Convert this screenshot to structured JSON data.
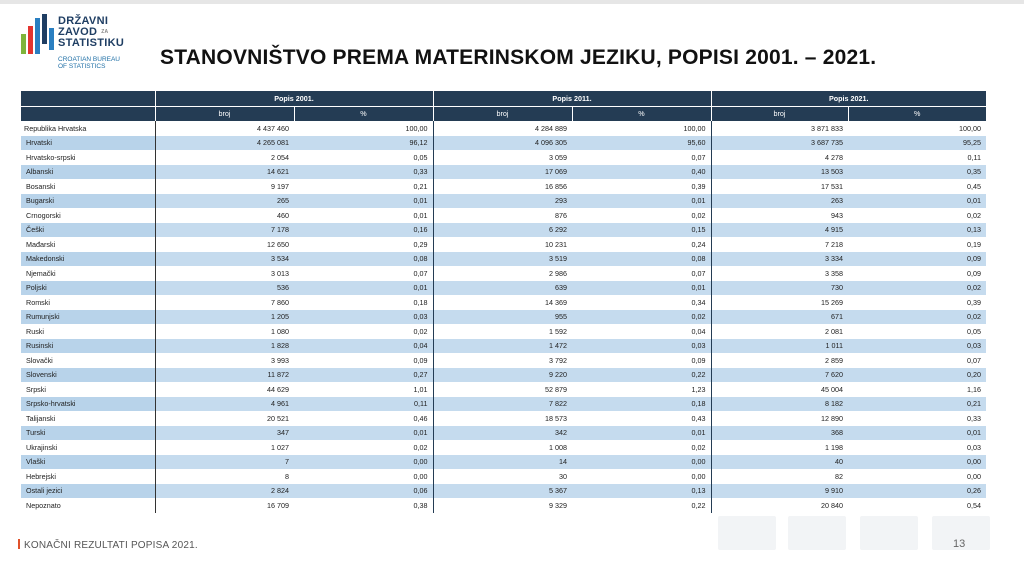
{
  "logo": {
    "line1": "DRŽAVNI",
    "line2": "ZAVOD",
    "line2_note": "ZA",
    "line3": "STATISTIKU",
    "sub1": "CROATIAN BUREAU",
    "sub2": "OF STATISTICS",
    "colors": [
      "#2a7fc1",
      "#e3342f",
      "#1f3e63",
      "#7fb43a"
    ]
  },
  "title": "STANOVNIŠTVO PREMA MATERINSKOM JEZIKU, POPISI 2001. – 2021.",
  "table": {
    "censuses": [
      "Popis 2001.",
      "Popis 2011.",
      "Popis 2021."
    ],
    "subheaders": [
      "broj",
      "%"
    ],
    "rows": [
      {
        "lang": "Republika Hrvatska",
        "v": [
          "4 437 460",
          "100,00",
          "4 284 889",
          "100,00",
          "3 871 833",
          "100,00"
        ]
      },
      {
        "lang": "Hrvatski",
        "v": [
          "4 265 081",
          "96,12",
          "4 096 305",
          "95,60",
          "3 687 735",
          "95,25"
        ]
      },
      {
        "lang": "Hrvatsko-srpski",
        "v": [
          "2 054",
          "0,05",
          "3 059",
          "0,07",
          "4 278",
          "0,11"
        ]
      },
      {
        "lang": "Albanski",
        "v": [
          "14 621",
          "0,33",
          "17 069",
          "0,40",
          "13 503",
          "0,35"
        ]
      },
      {
        "lang": "Bosanski",
        "v": [
          "9 197",
          "0,21",
          "16 856",
          "0,39",
          "17 531",
          "0,45"
        ]
      },
      {
        "lang": "Bugarski",
        "v": [
          "265",
          "0,01",
          "293",
          "0,01",
          "263",
          "0,01"
        ]
      },
      {
        "lang": "Crnogorski",
        "v": [
          "460",
          "0,01",
          "876",
          "0,02",
          "943",
          "0,02"
        ]
      },
      {
        "lang": "Češki",
        "v": [
          "7 178",
          "0,16",
          "6 292",
          "0,15",
          "4 915",
          "0,13"
        ]
      },
      {
        "lang": "Mađarski",
        "v": [
          "12 650",
          "0,29",
          "10 231",
          "0,24",
          "7 218",
          "0,19"
        ]
      },
      {
        "lang": "Makedonski",
        "v": [
          "3 534",
          "0,08",
          "3 519",
          "0,08",
          "3 334",
          "0,09"
        ]
      },
      {
        "lang": "Njemački",
        "v": [
          "3 013",
          "0,07",
          "2 986",
          "0,07",
          "3 358",
          "0,09"
        ]
      },
      {
        "lang": "Poljski",
        "v": [
          "536",
          "0,01",
          "639",
          "0,01",
          "730",
          "0,02"
        ]
      },
      {
        "lang": "Romski",
        "v": [
          "7 860",
          "0,18",
          "14 369",
          "0,34",
          "15 269",
          "0,39"
        ]
      },
      {
        "lang": "Rumunjski",
        "v": [
          "1 205",
          "0,03",
          "955",
          "0,02",
          "671",
          "0,02"
        ]
      },
      {
        "lang": "Ruski",
        "v": [
          "1 080",
          "0,02",
          "1 592",
          "0,04",
          "2 081",
          "0,05"
        ]
      },
      {
        "lang": "Rusinski",
        "v": [
          "1 828",
          "0,04",
          "1 472",
          "0,03",
          "1 011",
          "0,03"
        ]
      },
      {
        "lang": "Slovački",
        "v": [
          "3 993",
          "0,09",
          "3 792",
          "0,09",
          "2 859",
          "0,07"
        ]
      },
      {
        "lang": "Slovenski",
        "v": [
          "11 872",
          "0,27",
          "9 220",
          "0,22",
          "7 620",
          "0,20"
        ]
      },
      {
        "lang": "Srpski",
        "v": [
          "44 629",
          "1,01",
          "52 879",
          "1,23",
          "45 004",
          "1,16"
        ]
      },
      {
        "lang": "Srpsko-hrvatski",
        "v": [
          "4 961",
          "0,11",
          "7 822",
          "0,18",
          "8 182",
          "0,21"
        ]
      },
      {
        "lang": "Talijanski",
        "v": [
          "20 521",
          "0,46",
          "18 573",
          "0,43",
          "12 890",
          "0,33"
        ]
      },
      {
        "lang": "Turski",
        "v": [
          "347",
          "0,01",
          "342",
          "0,01",
          "368",
          "0,01"
        ]
      },
      {
        "lang": "Ukrajinski",
        "v": [
          "1 027",
          "0,02",
          "1 008",
          "0,02",
          "1 198",
          "0,03"
        ]
      },
      {
        "lang": "Vlaški",
        "v": [
          "7",
          "0,00",
          "14",
          "0,00",
          "40",
          "0,00"
        ]
      },
      {
        "lang": "Hebrejski",
        "v": [
          "8",
          "0,00",
          "30",
          "0,00",
          "82",
          "0,00"
        ]
      },
      {
        "lang": "Ostali jezici",
        "v": [
          "2 824",
          "0,06",
          "5 367",
          "0,13",
          "9 910",
          "0,26"
        ]
      },
      {
        "lang": "Nepoznato",
        "v": [
          "16 709",
          "0,38",
          "9 329",
          "0,22",
          "20 840",
          "0,54"
        ]
      }
    ]
  },
  "colors": {
    "header_bg": "#243c54",
    "row_shade": "#c5dbee",
    "accent_bar": "#e0522b"
  },
  "footer": {
    "text": "KONAČNI REZULTATI POPISA 2021.",
    "page": "13"
  }
}
